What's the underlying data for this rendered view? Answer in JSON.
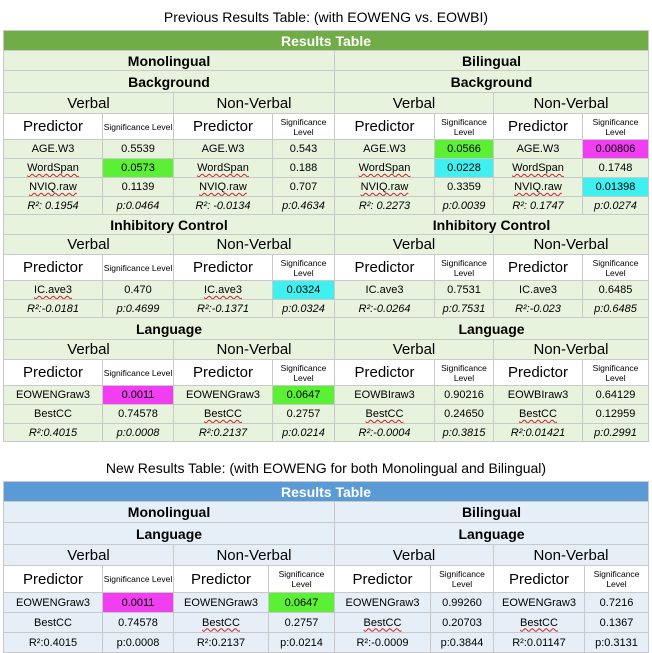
{
  "captions": {
    "previous": "Previous Results Table: (with EOWENG vs. EOWBI)",
    "new": "New Results Table: (with EOWENG for both Monolingual and Bilingual)"
  },
  "labels": {
    "results_table": "Results Table",
    "monolingual": "Monolingual",
    "bilingual": "Bilingual",
    "background": "Background",
    "inhibitory_control": "Inhibitory Control",
    "language": "Language",
    "verbal": "Verbal",
    "non_verbal": "Non-Verbal",
    "predictor": "Predictor",
    "significance_level": "Significance Level"
  },
  "previous": {
    "background": [
      [
        "AGE.W3",
        "0.5539",
        "AGE.W3",
        "0.543",
        "AGE.W3",
        "0.0566",
        "AGE.W3",
        "0.00806"
      ],
      [
        "WordSpan",
        "0.0573",
        "WordSpan",
        "0.188",
        "WordSpan",
        "0.0228",
        "WordSpan",
        "0.1748"
      ],
      [
        "NVIQ.raw",
        "0.1139",
        "NVIQ.raw",
        "0.707",
        "NVIQ.raw",
        "0.3359",
        "NVIQ.raw",
        "0.01398"
      ],
      [
        "R²: 0.1954",
        "p:0.0464",
        "R²: -0.0134",
        "p:0.4634",
        "R²: 0.2273",
        "p:0.0039",
        "R²: 0.1747",
        "p:0.0274"
      ]
    ],
    "inhibitory": [
      [
        "IC.ave3",
        "0.470",
        "IC.ave3",
        "0.0324",
        "IC.ave3",
        "0.7531",
        "IC.ave3",
        "0.6485"
      ],
      [
        "R²:-0.0181",
        "p:0.4699",
        "R²:-0.1371",
        "p:0.0324",
        "R²:-0.0264",
        "p:0.7531",
        "R²:-0.023",
        "p:0.6485"
      ]
    ],
    "language": [
      [
        "EOWENGraw3",
        "0.0011",
        "EOWENGraw3",
        "0.0647",
        "EOWBIraw3",
        "0.90216",
        "EOWBIraw3",
        "0.64129"
      ],
      [
        "BestCC",
        "0.74578",
        "BestCC",
        "0.2757",
        "BestCC",
        "0.24650",
        "BestCC",
        "0.12959"
      ],
      [
        "R²:0.4015",
        "p:0.0008",
        "R²:0.2137",
        "p:0.0214",
        "R²:-0.0004",
        "p:0.3815",
        "R²:0.01421",
        "p:0.2991"
      ]
    ]
  },
  "new": {
    "language": [
      [
        "EOWENGraw3",
        "0.0011",
        "EOWENGraw3",
        "0.0647",
        "EOWENGraw3",
        "0.99260",
        "EOWENGraw3",
        "0.7216"
      ],
      [
        "BestCC",
        "0.74578",
        "BestCC",
        "0.2757",
        "BestCC",
        "0.20703",
        "BestCC",
        "0.1367"
      ],
      [
        "R²:0.4015",
        "p:0.0008",
        "R²:0.2137",
        "p:0.0214",
        "R²:-0.0009",
        "p:0.3844",
        "R²:0.01147",
        "p:0.3131"
      ]
    ]
  },
  "colors": {
    "green_header": "#70ad47",
    "blue_header": "#5b9bd5",
    "highlight_green": "#5bf035",
    "highlight_magenta": "#f03ef0",
    "highlight_cyan": "#3ff0f0"
  }
}
